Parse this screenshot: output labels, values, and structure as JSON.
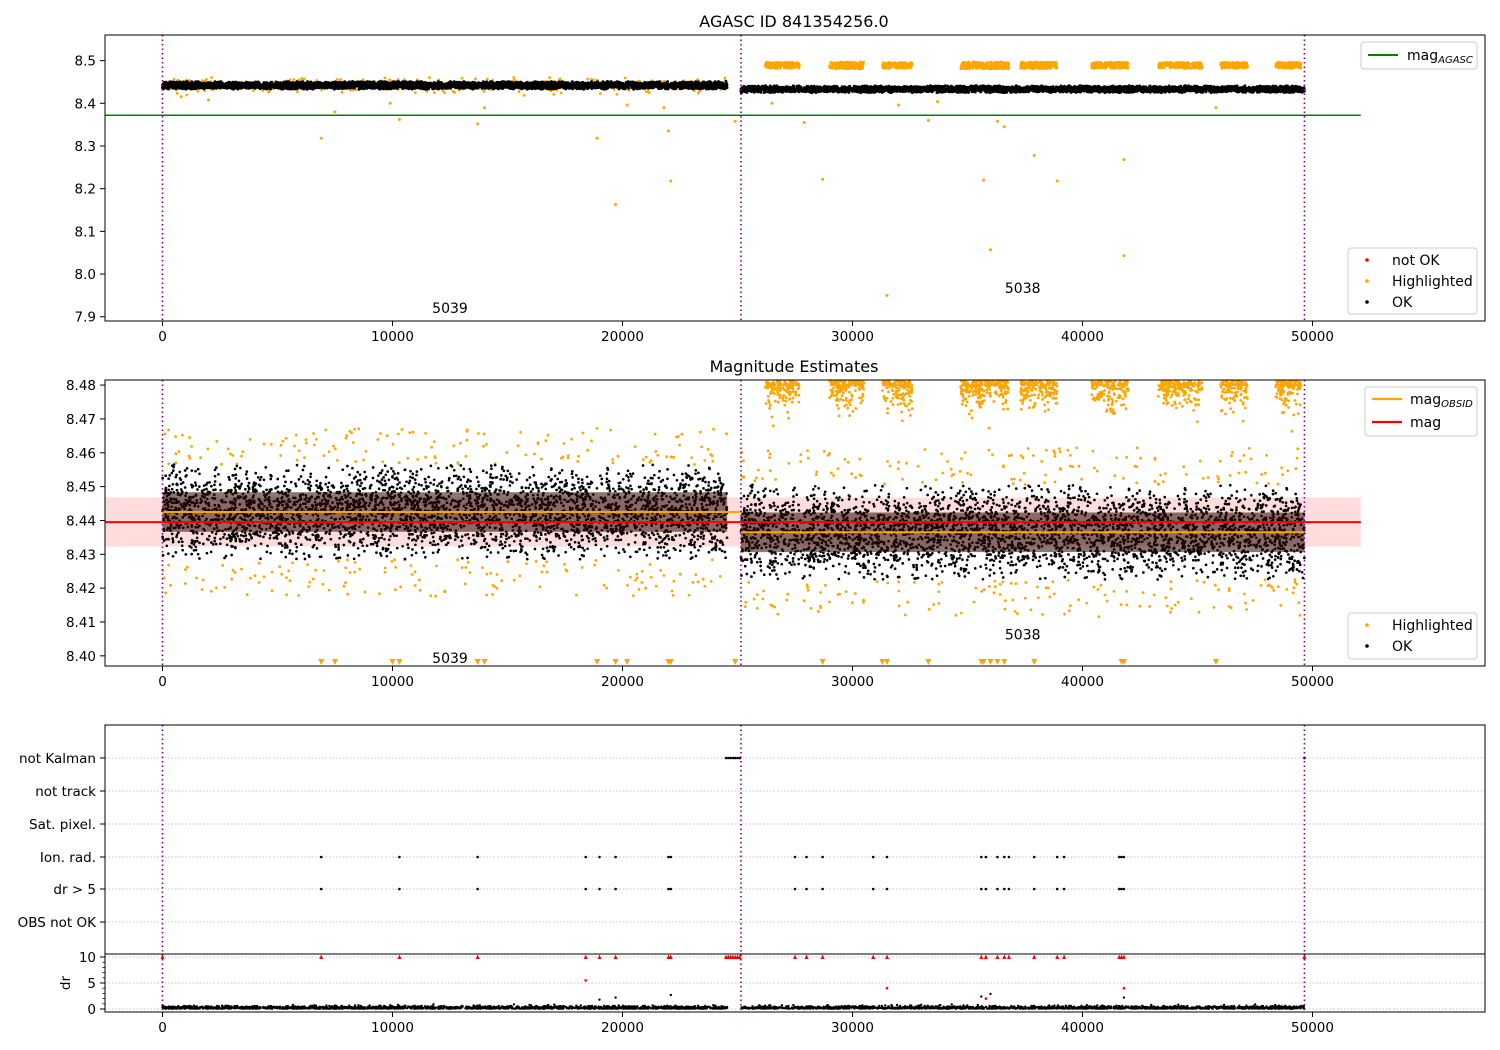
{
  "chart_data": [
    {
      "type": "scatter",
      "title": "AGASC ID 841354256.0",
      "xlim": [
        -2500,
        57500
      ],
      "ylim": [
        7.89,
        8.56
      ],
      "xticks": [
        0,
        10000,
        20000,
        30000,
        40000,
        50000
      ],
      "xtick_labels": [
        "0",
        "10000",
        "20000",
        "30000",
        "40000",
        "50000"
      ],
      "yticks": [
        7.9,
        8.0,
        8.1,
        8.2,
        8.3,
        8.4,
        8.5
      ],
      "ytick_labels": [
        "7.9",
        "8.0",
        "8.1",
        "8.2",
        "8.3",
        "8.4",
        "8.5"
      ],
      "obs_boundaries": [
        0,
        25150,
        49650
      ],
      "hlines": [
        {
          "name": "mag_AGASC",
          "label_main": "mag",
          "label_sub": "AGASC",
          "y": 8.372,
          "x": [
            -2500,
            52100
          ],
          "color": "#008000"
        }
      ],
      "bands": [
        {
          "x": [
            0,
            24550
          ],
          "center": 8.442,
          "spread": 0.009
        },
        {
          "x": [
            25150,
            49650
          ],
          "center": 8.433,
          "spread": 0.008
        }
      ],
      "highlight_clusters": [
        {
          "x": [
            26200,
            27700
          ],
          "y": 8.489,
          "h": 0.014
        },
        {
          "x": [
            29000,
            30500
          ],
          "y": 8.489,
          "h": 0.016
        },
        {
          "x": [
            31300,
            32600
          ],
          "y": 8.489,
          "h": 0.014
        },
        {
          "x": [
            34700,
            36800
          ],
          "y": 8.489,
          "h": 0.016
        },
        {
          "x": [
            37300,
            38900
          ],
          "y": 8.489,
          "h": 0.016
        },
        {
          "x": [
            40400,
            42000
          ],
          "y": 8.489,
          "h": 0.014
        },
        {
          "x": [
            43300,
            45200
          ],
          "y": 8.489,
          "h": 0.014
        },
        {
          "x": [
            46000,
            47200
          ],
          "y": 8.489,
          "h": 0.014
        },
        {
          "x": [
            48400,
            49500
          ],
          "y": 8.489,
          "h": 0.014
        }
      ],
      "highlighted_points": [
        {
          "x": 6900,
          "y": 8.318
        },
        {
          "x": 7500,
          "y": 8.38
        },
        {
          "x": 10300,
          "y": 8.362
        },
        {
          "x": 13700,
          "y": 8.352
        },
        {
          "x": 18900,
          "y": 8.318
        },
        {
          "x": 19700,
          "y": 8.163
        },
        {
          "x": 22000,
          "y": 8.335
        },
        {
          "x": 22100,
          "y": 8.218
        },
        {
          "x": 24900,
          "y": 8.358
        },
        {
          "x": 27900,
          "y": 8.355
        },
        {
          "x": 28700,
          "y": 8.222
        },
        {
          "x": 31500,
          "y": 7.95
        },
        {
          "x": 33300,
          "y": 8.36
        },
        {
          "x": 35700,
          "y": 8.22
        },
        {
          "x": 36000,
          "y": 8.057
        },
        {
          "x": 36600,
          "y": 8.345
        },
        {
          "x": 37900,
          "y": 8.278
        },
        {
          "x": 38900,
          "y": 8.218
        },
        {
          "x": 41800,
          "y": 8.268
        },
        {
          "x": 41800,
          "y": 8.043
        },
        {
          "x": 36300,
          "y": 8.358
        },
        {
          "x": 2000,
          "y": 8.408
        },
        {
          "x": 9900,
          "y": 8.4
        },
        {
          "x": 14000,
          "y": 8.39
        },
        {
          "x": 20200,
          "y": 8.396
        },
        {
          "x": 21800,
          "y": 8.39
        },
        {
          "x": 32000,
          "y": 8.396
        },
        {
          "x": 45800,
          "y": 8.39
        },
        {
          "x": 26500,
          "y": 8.4
        },
        {
          "x": 33700,
          "y": 8.404
        }
      ],
      "annotations": [
        {
          "text": "5039",
          "x": 12500,
          "y": 7.92
        },
        {
          "text": "5038",
          "x": 37400,
          "y": 7.967
        }
      ],
      "legends": [
        {
          "position": "top-right",
          "entries": [
            {
              "label_main": "mag",
              "label_sub": "AGASC",
              "kind": "line",
              "color": "#008000"
            }
          ]
        },
        {
          "position": "lower-right",
          "entries": [
            {
              "label": "not OK",
              "kind": "dot",
              "color": "#ff0000"
            },
            {
              "label": "Highlighted",
              "kind": "dot",
              "color": "#ffa500"
            },
            {
              "label": "OK",
              "kind": "dot",
              "color": "#000000"
            }
          ]
        }
      ]
    },
    {
      "type": "scatter",
      "title": "Magnitude Estimates",
      "xlim": [
        -2500,
        57500
      ],
      "ylim": [
        8.397,
        8.4815
      ],
      "xticks": [
        0,
        10000,
        20000,
        30000,
        40000,
        50000
      ],
      "xtick_labels": [
        "0",
        "10000",
        "20000",
        "30000",
        "40000",
        "50000"
      ],
      "yticks": [
        8.4,
        8.41,
        8.42,
        8.43,
        8.44,
        8.45,
        8.46,
        8.47,
        8.48
      ],
      "ytick_labels": [
        "8.40",
        "8.41",
        "8.42",
        "8.43",
        "8.44",
        "8.45",
        "8.46",
        "8.47",
        "8.48"
      ],
      "obs_boundaries": [
        0,
        25150,
        49650
      ],
      "hlines": [
        {
          "name": "mag_OBSID_1",
          "y": 8.4425,
          "x": [
            0,
            25150
          ],
          "color": "#ffa500"
        },
        {
          "name": "mag_OBSID_2",
          "y": 8.4365,
          "x": [
            25150,
            49650
          ],
          "color": "#ffa500"
        },
        {
          "name": "mag",
          "y": 8.4395,
          "x": [
            -2500,
            52100
          ],
          "color": "#ff0000"
        }
      ],
      "mag_band": {
        "y": [
          8.4323,
          8.4468
        ],
        "x": [
          -2500,
          52100
        ],
        "color": "#ffdddd"
      },
      "bands": [
        {
          "x": [
            0,
            24550
          ],
          "center": 8.4425,
          "spread": 0.0065,
          "outer": 0.014
        },
        {
          "x": [
            25150,
            49650
          ],
          "center": 8.4365,
          "spread": 0.0065,
          "outer": 0.014
        }
      ],
      "top_clusters": [
        {
          "x": [
            26200,
            27700
          ]
        },
        {
          "x": [
            29000,
            30500
          ]
        },
        {
          "x": [
            31300,
            32600
          ]
        },
        {
          "x": [
            34700,
            36800
          ]
        },
        {
          "x": [
            37300,
            38900
          ]
        },
        {
          "x": [
            40400,
            42000
          ]
        },
        {
          "x": [
            43300,
            45200
          ]
        },
        {
          "x": [
            46000,
            47200
          ]
        },
        {
          "x": [
            48400,
            49500
          ]
        }
      ],
      "bottom_markers": [
        6900,
        7500,
        10000,
        10300,
        13700,
        14000,
        18900,
        19700,
        20200,
        22000,
        22100,
        24900,
        28700,
        31300,
        31500,
        33300,
        35600,
        35700,
        36000,
        36300,
        36600,
        37900,
        41700,
        41800,
        45800
      ],
      "annotations": [
        {
          "text": "5039",
          "x": 12500,
          "y": 8.3993
        },
        {
          "text": "5038",
          "x": 37400,
          "y": 8.4063
        }
      ],
      "legends": [
        {
          "position": "top-right",
          "entries": [
            {
              "label_main": "mag",
              "label_sub": "OBSID",
              "kind": "line",
              "color": "#ffa500"
            },
            {
              "label": "mag",
              "kind": "line",
              "color": "#ff0000"
            }
          ]
        },
        {
          "position": "lower-right",
          "entries": [
            {
              "label": "Highlighted",
              "kind": "dot",
              "color": "#ffa500"
            },
            {
              "label": "OK",
              "kind": "dot",
              "color": "#000000"
            }
          ]
        }
      ]
    },
    {
      "type": "scatter",
      "title": "",
      "xlim": [
        -2500,
        57500
      ],
      "xticks": [
        0,
        10000,
        20000,
        30000,
        40000,
        50000
      ],
      "xtick_labels": [
        "0",
        "10000",
        "20000",
        "30000",
        "40000",
        "50000"
      ],
      "obs_boundaries": [
        0,
        25150,
        49650
      ],
      "flag_rows": [
        "not Kalman",
        "not track",
        "Sat. pixel.",
        "Ion. rad.",
        "dr > 5",
        "OBS not OK"
      ],
      "flags": {
        "not Kalman": [
          24500,
          24600,
          24700,
          24800,
          24900,
          25000,
          25100,
          49650
        ],
        "Ion. rad.": [
          6900,
          10300,
          13700,
          18400,
          19000,
          19700,
          22000,
          22100,
          27500,
          28000,
          28700,
          30900,
          31500,
          35600,
          35800,
          36300,
          36600,
          36800,
          37900,
          38900,
          39200,
          41600,
          41700,
          41800
        ],
        "dr > 5": [
          6900,
          10300,
          13700,
          18400,
          19000,
          19700,
          22000,
          22100,
          27500,
          28000,
          28700,
          30900,
          31500,
          35600,
          35800,
          36300,
          36600,
          36800,
          37900,
          38900,
          39200,
          41600,
          41700,
          41800
        ]
      },
      "dr_ylabel": "dr",
      "dr_yticks": [
        0,
        5,
        10
      ],
      "dr_ytick_labels": [
        "0",
        "5",
        "10"
      ],
      "dr_ylim": [
        -0.3,
        10.5
      ],
      "dr_clipped": [
        0,
        6900,
        10300,
        13700,
        18400,
        19000,
        19700,
        22000,
        22100,
        24500,
        24600,
        24700,
        24800,
        24900,
        25000,
        25100,
        27500,
        28000,
        28700,
        30900,
        31500,
        35600,
        35800,
        36300,
        36600,
        36800,
        37900,
        38900,
        39200,
        41600,
        41700,
        41800,
        49650
      ],
      "dr_red_points": [
        {
          "x": 18400,
          "y": 5.5
        },
        {
          "x": 31500,
          "y": 4.0
        },
        {
          "x": 41800,
          "y": 4.0
        },
        {
          "x": 35800,
          "y": 2.0
        }
      ],
      "dr_black_points": [
        {
          "x": 19000,
          "y": 1.8
        },
        {
          "x": 19700,
          "y": 2.2
        },
        {
          "x": 22100,
          "y": 2.7
        },
        {
          "x": 36000,
          "y": 2.9
        },
        {
          "x": 41800,
          "y": 2.2
        },
        {
          "x": 35600,
          "y": 2.4
        }
      ]
    }
  ]
}
